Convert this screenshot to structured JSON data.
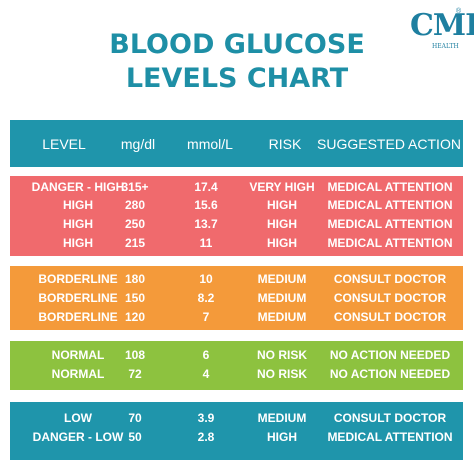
{
  "logo": {
    "mark": "CMI",
    "sub": "HEALTH",
    "reg": "®"
  },
  "title": {
    "line1": "BLOOD GLUCOSE",
    "line2": "LEVELS CHART"
  },
  "headers": [
    "LEVEL",
    "mg/dl",
    "mmol/L",
    "RISK",
    "SUGGESTED ACTION"
  ],
  "rows": [
    [
      "DANGER - HIGH",
      "315+",
      "17.4",
      "VERY HIGH",
      "MEDICAL ATTENTION"
    ],
    [
      "HIGH",
      "280",
      "15.6",
      "HIGH",
      "MEDICAL ATTENTION"
    ],
    [
      "HIGH",
      "250",
      "13.7",
      "HIGH",
      "MEDICAL ATTENTION"
    ],
    [
      "HIGH",
      "215",
      "11",
      "HIGH",
      "MEDICAL ATTENTION"
    ],
    [
      "BORDERLINE",
      "180",
      "10",
      "MEDIUM",
      "CONSULT DOCTOR"
    ],
    [
      "BORDERLINE",
      "150",
      "8.2",
      "MEDIUM",
      "CONSULT DOCTOR"
    ],
    [
      "BORDERLINE",
      "120",
      "7",
      "MEDIUM",
      "CONSULT DOCTOR"
    ],
    [
      "NORMAL",
      "108",
      "6",
      "NO RISK",
      "NO ACTION NEEDED"
    ],
    [
      "NORMAL",
      "72",
      "4",
      "NO RISK",
      "NO ACTION NEEDED"
    ],
    [
      "LOW",
      "70",
      "3.9",
      "MEDIUM",
      "CONSULT DOCTOR"
    ],
    [
      "DANGER - LOW",
      "50",
      "2.8",
      "HIGH",
      "MEDICAL ATTENTION"
    ]
  ],
  "colors": {
    "header": "#1f95ab",
    "red": "#f06a6d",
    "orange": "#f49a3a",
    "green": "#8dc23f",
    "blue": "#1f95ab",
    "title": "#1e8fa6"
  }
}
